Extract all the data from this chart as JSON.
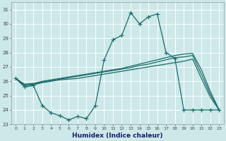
{
  "xlabel": "Humidex (Indice chaleur)",
  "bg_color": "#cce8e8",
  "grid_color": "#b0d4d4",
  "line_color": "#1a6b6b",
  "xlim": [
    -0.5,
    23.5
  ],
  "ylim": [
    23,
    31.5
  ],
  "yticks": [
    23,
    24,
    25,
    26,
    27,
    28,
    29,
    30,
    31
  ],
  "xticks": [
    0,
    1,
    2,
    3,
    4,
    5,
    6,
    7,
    8,
    9,
    10,
    11,
    12,
    13,
    14,
    15,
    16,
    17,
    18,
    19,
    20,
    21,
    22,
    23
  ],
  "series1_x": [
    0,
    1,
    2,
    3,
    4,
    5,
    6,
    7,
    8,
    9,
    10,
    11,
    12,
    13,
    14,
    15,
    16,
    17,
    18,
    19,
    20,
    21,
    22,
    23
  ],
  "series1_y": [
    26.2,
    25.6,
    25.7,
    24.3,
    23.8,
    23.6,
    23.3,
    23.55,
    23.4,
    24.3,
    27.5,
    28.9,
    29.2,
    30.8,
    30.0,
    30.5,
    30.7,
    28.0,
    27.6,
    24.0,
    24.0,
    24.0,
    24.0,
    24.0
  ],
  "series2_x": [
    0,
    1,
    2,
    3,
    4,
    5,
    6,
    7,
    8,
    9,
    10,
    11,
    12,
    13,
    14,
    15,
    16,
    17,
    18,
    19,
    20,
    21,
    22,
    23
  ],
  "series2_y": [
    26.2,
    25.7,
    25.75,
    25.9,
    26.0,
    26.1,
    26.15,
    26.2,
    26.3,
    26.4,
    26.5,
    26.6,
    26.7,
    26.8,
    26.9,
    27.0,
    27.1,
    27.2,
    27.3,
    27.4,
    27.55,
    26.2,
    24.9,
    24.0
  ],
  "series3_x": [
    0,
    1,
    2,
    3,
    4,
    5,
    6,
    7,
    8,
    9,
    10,
    11,
    12,
    13,
    14,
    15,
    16,
    17,
    18,
    19,
    20,
    21,
    22,
    23
  ],
  "series3_y": [
    26.2,
    25.75,
    25.8,
    25.95,
    26.05,
    26.15,
    26.25,
    26.35,
    26.45,
    26.55,
    26.65,
    26.75,
    26.85,
    26.95,
    27.1,
    27.2,
    27.35,
    27.5,
    27.65,
    27.7,
    27.8,
    26.5,
    25.1,
    24.0
  ],
  "series4_x": [
    0,
    1,
    2,
    3,
    4,
    5,
    6,
    7,
    8,
    9,
    10,
    11,
    12,
    13,
    14,
    15,
    16,
    17,
    18,
    19,
    20,
    21,
    22,
    23
  ],
  "series4_y": [
    26.2,
    25.8,
    25.85,
    26.0,
    26.1,
    26.2,
    26.3,
    26.4,
    26.5,
    26.6,
    26.7,
    26.8,
    26.9,
    27.05,
    27.2,
    27.35,
    27.5,
    27.65,
    27.8,
    27.9,
    27.95,
    26.8,
    25.3,
    24.0
  ],
  "marker_size": 2.5,
  "linewidth": 0.9
}
